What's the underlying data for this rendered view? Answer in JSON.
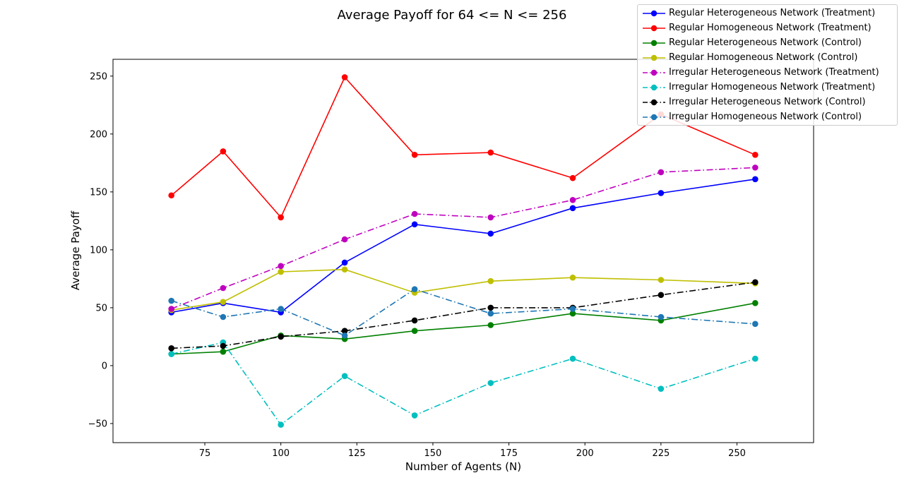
{
  "chart_data": {
    "type": "line",
    "title": "Average Payoff for 64 <= N <= 256",
    "xlabel": "Number of Agents (N)",
    "ylabel": "Average Payoff",
    "xlim": [
      44.8,
      275.2
    ],
    "ylim": [
      -66.5,
      264.5
    ],
    "x_ticks": [
      75,
      100,
      125,
      150,
      175,
      200,
      225,
      250
    ],
    "y_ticks": [
      -50,
      0,
      50,
      100,
      150,
      200,
      250
    ],
    "grid": false,
    "legend_position": "top-right",
    "x": [
      64,
      81,
      100,
      121,
      144,
      169,
      196,
      225,
      256
    ],
    "series": [
      {
        "name": "Regular Heterogeneous Network (Treatment)",
        "color": "#0000ff",
        "style": "solid",
        "values": [
          46,
          54,
          46,
          89,
          122,
          114,
          136,
          149,
          161
        ]
      },
      {
        "name": "Regular Homogeneous Network (Treatment)",
        "color": "#ff0000",
        "style": "solid",
        "values": [
          147,
          185,
          128,
          249,
          182,
          184,
          162,
          217,
          182
        ]
      },
      {
        "name": "Regular Heterogeneous Network (Control)",
        "color": "#008000",
        "style": "solid",
        "values": [
          10,
          12,
          26,
          23,
          30,
          35,
          45,
          39,
          54
        ]
      },
      {
        "name": "Regular Homogeneous Network (Control)",
        "color": "#bfbf00",
        "style": "solid",
        "values": [
          48,
          55,
          81,
          83,
          63,
          73,
          76,
          74,
          71
        ]
      },
      {
        "name": "Irregular Heterogeneous Network (Treatment)",
        "color": "#bf00bf",
        "style": "dashdot",
        "values": [
          49,
          67,
          86,
          109,
          131,
          128,
          143,
          167,
          171
        ]
      },
      {
        "name": "Irregular Homogeneous Network (Treatment)",
        "color": "#00bfbf",
        "style": "dashdot",
        "values": [
          10,
          20,
          -51,
          -9,
          -43,
          -15,
          6,
          -20,
          6
        ]
      },
      {
        "name": "Irregular Heterogeneous Network (Control)",
        "color": "#000000",
        "style": "dashdot",
        "values": [
          15,
          17,
          25,
          30,
          39,
          50,
          50,
          61,
          72
        ]
      },
      {
        "name": "Irregular Homogeneous Network (Control)",
        "color": "#1f77b4",
        "style": "dashdot",
        "values": [
          56,
          42,
          49,
          26,
          66,
          45,
          49,
          42,
          36
        ]
      }
    ]
  }
}
